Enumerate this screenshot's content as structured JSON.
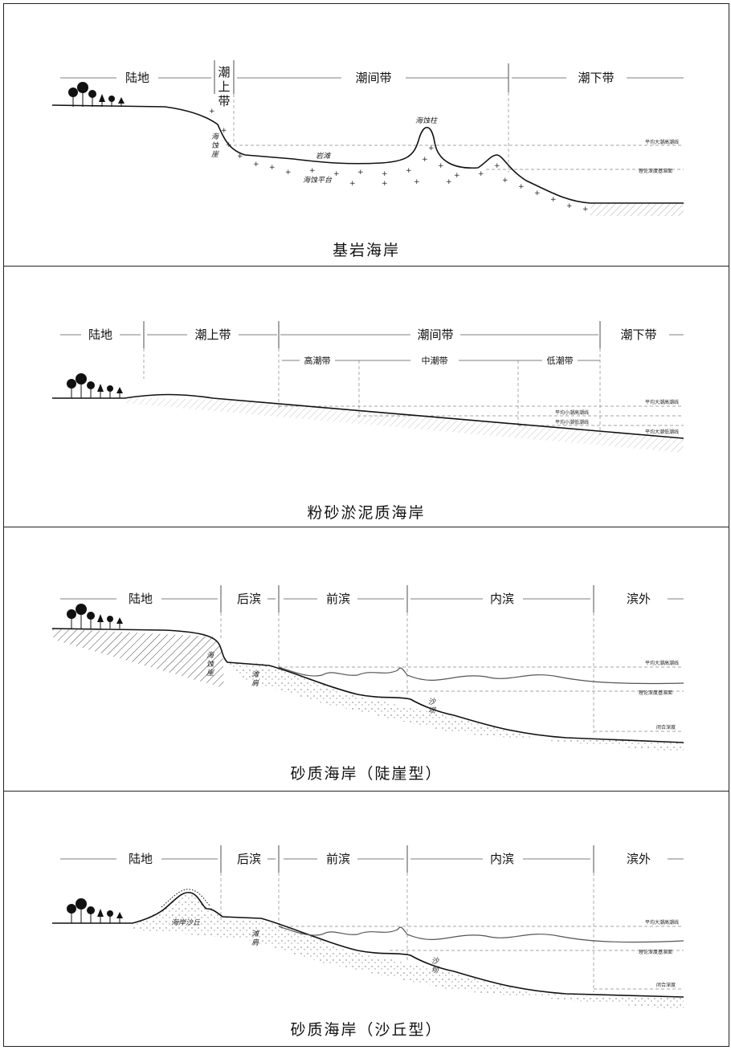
{
  "panels": {
    "bedrock": {
      "title": "基岩海岸",
      "zones": {
        "land": "陆地",
        "supratidal": "潮上带",
        "intertidal": "潮间带",
        "subtidal": "潮下带"
      },
      "labels": {
        "sea_stack": "海蚀柱",
        "sea_cliff": "海蚀崖",
        "rock_beach": "岩滩",
        "platform": "海蚀平台"
      },
      "levels": {
        "mhw": "平均大潮高潮线",
        "datum": "理论深度基准面"
      }
    },
    "silt": {
      "title": "粉砂淤泥质海岸",
      "zones": {
        "land": "陆地",
        "supratidal": "潮上带",
        "intertidal": "潮间带",
        "subtidal": "潮下带"
      },
      "subzones": {
        "high": "高潮带",
        "mid": "中潮带",
        "low": "低潮带"
      },
      "levels": {
        "mhw": "平均大潮高潮线",
        "mnhw": "平均小潮高潮线",
        "mnlw": "平均小潮低潮线",
        "mlw": "平均大潮低潮线"
      }
    },
    "sand_cliff": {
      "title": "砂质海岸（陡崖型）",
      "zones": {
        "land": "陆地",
        "backshore": "后滨",
        "foreshore": "前滨",
        "inshore": "内滨",
        "offshore": "滨外"
      },
      "labels": {
        "sea_cliff": "海蚀崖",
        "berm": "滩肩",
        "sandbar": "沙坝"
      },
      "levels": {
        "mhw": "平均大潮高潮线",
        "datum": "理论深度基准面",
        "closure": "闭合深度"
      }
    },
    "sand_dune": {
      "title": "砂质海岸（沙丘型）",
      "zones": {
        "land": "陆地",
        "backshore": "后滨",
        "foreshore": "前滨",
        "inshore": "内滨",
        "offshore": "滨外"
      },
      "labels": {
        "dune": "海岸沙丘",
        "berm": "滩肩",
        "sandbar": "沙坝"
      },
      "levels": {
        "mhw": "平均大潮高潮线",
        "datum": "理论深度基准面",
        "closure": "闭合深度"
      }
    }
  }
}
